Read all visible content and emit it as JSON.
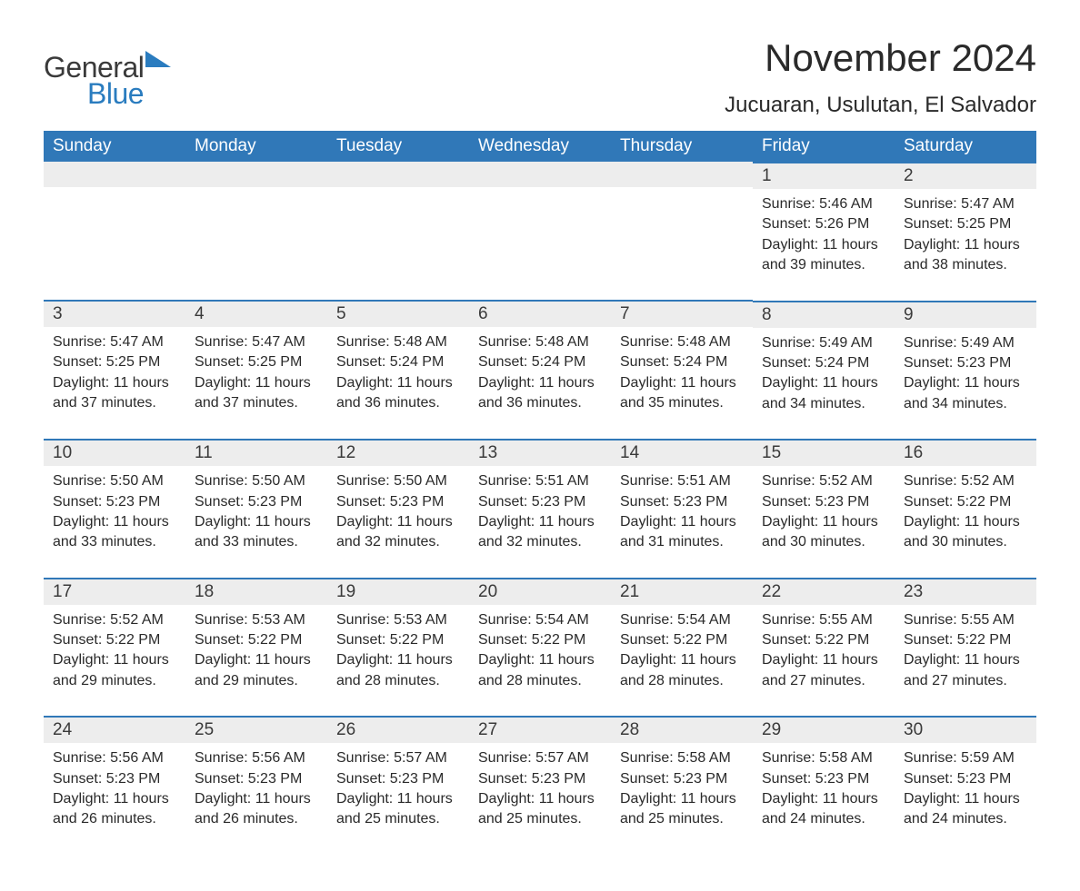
{
  "brand": {
    "word1": "General",
    "word2": "Blue",
    "text_color": "#3a3a3a",
    "accent_color": "#2a7cbf",
    "icon_color": "#2a7cbf"
  },
  "title": {
    "month_year": "November 2024",
    "location": "Jucuaran, Usulutan, El Salvador",
    "month_year_fontsize": 42,
    "location_fontsize": 24
  },
  "calendar": {
    "header_bg": "#3078b8",
    "header_text_color": "#ffffff",
    "band_bg": "#ededed",
    "band_border_color": "#3078b8",
    "text_color": "#2a2a2a",
    "day_headers": [
      "Sunday",
      "Monday",
      "Tuesday",
      "Wednesday",
      "Thursday",
      "Friday",
      "Saturday"
    ],
    "weeks": [
      [
        null,
        null,
        null,
        null,
        null,
        {
          "num": "1",
          "sunrise": "Sunrise: 5:46 AM",
          "sunset": "Sunset: 5:26 PM",
          "daylight1": "Daylight: 11 hours",
          "daylight2": "and 39 minutes."
        },
        {
          "num": "2",
          "sunrise": "Sunrise: 5:47 AM",
          "sunset": "Sunset: 5:25 PM",
          "daylight1": "Daylight: 11 hours",
          "daylight2": "and 38 minutes."
        }
      ],
      [
        {
          "num": "3",
          "sunrise": "Sunrise: 5:47 AM",
          "sunset": "Sunset: 5:25 PM",
          "daylight1": "Daylight: 11 hours",
          "daylight2": "and 37 minutes."
        },
        {
          "num": "4",
          "sunrise": "Sunrise: 5:47 AM",
          "sunset": "Sunset: 5:25 PM",
          "daylight1": "Daylight: 11 hours",
          "daylight2": "and 37 minutes."
        },
        {
          "num": "5",
          "sunrise": "Sunrise: 5:48 AM",
          "sunset": "Sunset: 5:24 PM",
          "daylight1": "Daylight: 11 hours",
          "daylight2": "and 36 minutes."
        },
        {
          "num": "6",
          "sunrise": "Sunrise: 5:48 AM",
          "sunset": "Sunset: 5:24 PM",
          "daylight1": "Daylight: 11 hours",
          "daylight2": "and 36 minutes."
        },
        {
          "num": "7",
          "sunrise": "Sunrise: 5:48 AM",
          "sunset": "Sunset: 5:24 PM",
          "daylight1": "Daylight: 11 hours",
          "daylight2": "and 35 minutes."
        },
        {
          "num": "8",
          "sunrise": "Sunrise: 5:49 AM",
          "sunset": "Sunset: 5:24 PM",
          "daylight1": "Daylight: 11 hours",
          "daylight2": "and 34 minutes."
        },
        {
          "num": "9",
          "sunrise": "Sunrise: 5:49 AM",
          "sunset": "Sunset: 5:23 PM",
          "daylight1": "Daylight: 11 hours",
          "daylight2": "and 34 minutes."
        }
      ],
      [
        {
          "num": "10",
          "sunrise": "Sunrise: 5:50 AM",
          "sunset": "Sunset: 5:23 PM",
          "daylight1": "Daylight: 11 hours",
          "daylight2": "and 33 minutes."
        },
        {
          "num": "11",
          "sunrise": "Sunrise: 5:50 AM",
          "sunset": "Sunset: 5:23 PM",
          "daylight1": "Daylight: 11 hours",
          "daylight2": "and 33 minutes."
        },
        {
          "num": "12",
          "sunrise": "Sunrise: 5:50 AM",
          "sunset": "Sunset: 5:23 PM",
          "daylight1": "Daylight: 11 hours",
          "daylight2": "and 32 minutes."
        },
        {
          "num": "13",
          "sunrise": "Sunrise: 5:51 AM",
          "sunset": "Sunset: 5:23 PM",
          "daylight1": "Daylight: 11 hours",
          "daylight2": "and 32 minutes."
        },
        {
          "num": "14",
          "sunrise": "Sunrise: 5:51 AM",
          "sunset": "Sunset: 5:23 PM",
          "daylight1": "Daylight: 11 hours",
          "daylight2": "and 31 minutes."
        },
        {
          "num": "15",
          "sunrise": "Sunrise: 5:52 AM",
          "sunset": "Sunset: 5:23 PM",
          "daylight1": "Daylight: 11 hours",
          "daylight2": "and 30 minutes."
        },
        {
          "num": "16",
          "sunrise": "Sunrise: 5:52 AM",
          "sunset": "Sunset: 5:22 PM",
          "daylight1": "Daylight: 11 hours",
          "daylight2": "and 30 minutes."
        }
      ],
      [
        {
          "num": "17",
          "sunrise": "Sunrise: 5:52 AM",
          "sunset": "Sunset: 5:22 PM",
          "daylight1": "Daylight: 11 hours",
          "daylight2": "and 29 minutes."
        },
        {
          "num": "18",
          "sunrise": "Sunrise: 5:53 AM",
          "sunset": "Sunset: 5:22 PM",
          "daylight1": "Daylight: 11 hours",
          "daylight2": "and 29 minutes."
        },
        {
          "num": "19",
          "sunrise": "Sunrise: 5:53 AM",
          "sunset": "Sunset: 5:22 PM",
          "daylight1": "Daylight: 11 hours",
          "daylight2": "and 28 minutes."
        },
        {
          "num": "20",
          "sunrise": "Sunrise: 5:54 AM",
          "sunset": "Sunset: 5:22 PM",
          "daylight1": "Daylight: 11 hours",
          "daylight2": "and 28 minutes."
        },
        {
          "num": "21",
          "sunrise": "Sunrise: 5:54 AM",
          "sunset": "Sunset: 5:22 PM",
          "daylight1": "Daylight: 11 hours",
          "daylight2": "and 28 minutes."
        },
        {
          "num": "22",
          "sunrise": "Sunrise: 5:55 AM",
          "sunset": "Sunset: 5:22 PM",
          "daylight1": "Daylight: 11 hours",
          "daylight2": "and 27 minutes."
        },
        {
          "num": "23",
          "sunrise": "Sunrise: 5:55 AM",
          "sunset": "Sunset: 5:22 PM",
          "daylight1": "Daylight: 11 hours",
          "daylight2": "and 27 minutes."
        }
      ],
      [
        {
          "num": "24",
          "sunrise": "Sunrise: 5:56 AM",
          "sunset": "Sunset: 5:23 PM",
          "daylight1": "Daylight: 11 hours",
          "daylight2": "and 26 minutes."
        },
        {
          "num": "25",
          "sunrise": "Sunrise: 5:56 AM",
          "sunset": "Sunset: 5:23 PM",
          "daylight1": "Daylight: 11 hours",
          "daylight2": "and 26 minutes."
        },
        {
          "num": "26",
          "sunrise": "Sunrise: 5:57 AM",
          "sunset": "Sunset: 5:23 PM",
          "daylight1": "Daylight: 11 hours",
          "daylight2": "and 25 minutes."
        },
        {
          "num": "27",
          "sunrise": "Sunrise: 5:57 AM",
          "sunset": "Sunset: 5:23 PM",
          "daylight1": "Daylight: 11 hours",
          "daylight2": "and 25 minutes."
        },
        {
          "num": "28",
          "sunrise": "Sunrise: 5:58 AM",
          "sunset": "Sunset: 5:23 PM",
          "daylight1": "Daylight: 11 hours",
          "daylight2": "and 25 minutes."
        },
        {
          "num": "29",
          "sunrise": "Sunrise: 5:58 AM",
          "sunset": "Sunset: 5:23 PM",
          "daylight1": "Daylight: 11 hours",
          "daylight2": "and 24 minutes."
        },
        {
          "num": "30",
          "sunrise": "Sunrise: 5:59 AM",
          "sunset": "Sunset: 5:23 PM",
          "daylight1": "Daylight: 11 hours",
          "daylight2": "and 24 minutes."
        }
      ]
    ]
  }
}
